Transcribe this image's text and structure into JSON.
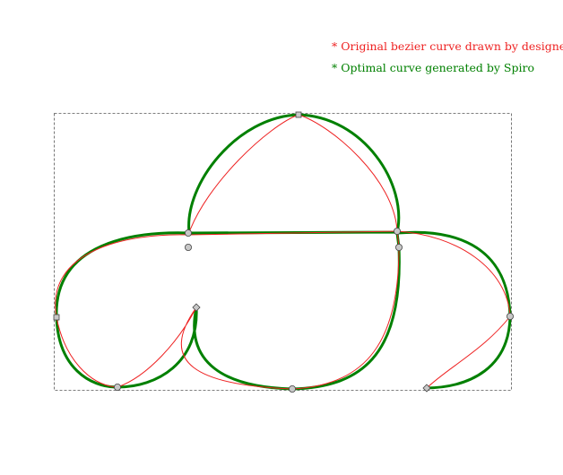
{
  "legend": {
    "original_label": "* Original bezier curve drawn by designer",
    "spiro_label": "* Optimal curve generated by Spiro"
  },
  "colors": {
    "original": "#ee2222",
    "spiro": "#008000",
    "bbox": "#555555",
    "node_fill": "#c8c8c8",
    "node_stroke": "#444444"
  }
}
